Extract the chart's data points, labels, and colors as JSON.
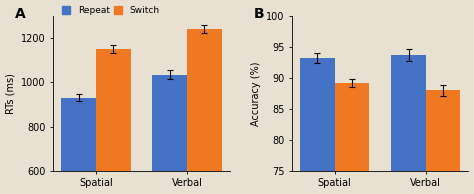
{
  "panel_A": {
    "title": "A",
    "categories": [
      "Spatial",
      "Verbal"
    ],
    "repeat_values": [
      930,
      1035
    ],
    "switch_values": [
      1150,
      1240
    ],
    "repeat_errors": [
      15,
      20
    ],
    "switch_errors": [
      18,
      18
    ],
    "ylabel": "RTs (ms)",
    "ylim": [
      600,
      1300
    ],
    "yticks": [
      600,
      800,
      1000,
      1200
    ]
  },
  "panel_B": {
    "title": "B",
    "categories": [
      "Spatial",
      "Verbal"
    ],
    "repeat_values": [
      93.2,
      93.7
    ],
    "switch_values": [
      89.2,
      88.0
    ],
    "repeat_errors": [
      0.8,
      1.0
    ],
    "switch_errors": [
      0.7,
      0.9
    ],
    "ylabel": "Accuracy (%)",
    "ylim": [
      75,
      100
    ],
    "yticks": [
      75,
      80,
      85,
      90,
      95,
      100
    ]
  },
  "legend_labels": [
    "Repeat",
    "Switch"
  ],
  "bar_colors": [
    "#4472C4",
    "#F07820"
  ],
  "bar_width": 0.38,
  "error_capsize": 2.5,
  "background_color": "#E8E0D0"
}
